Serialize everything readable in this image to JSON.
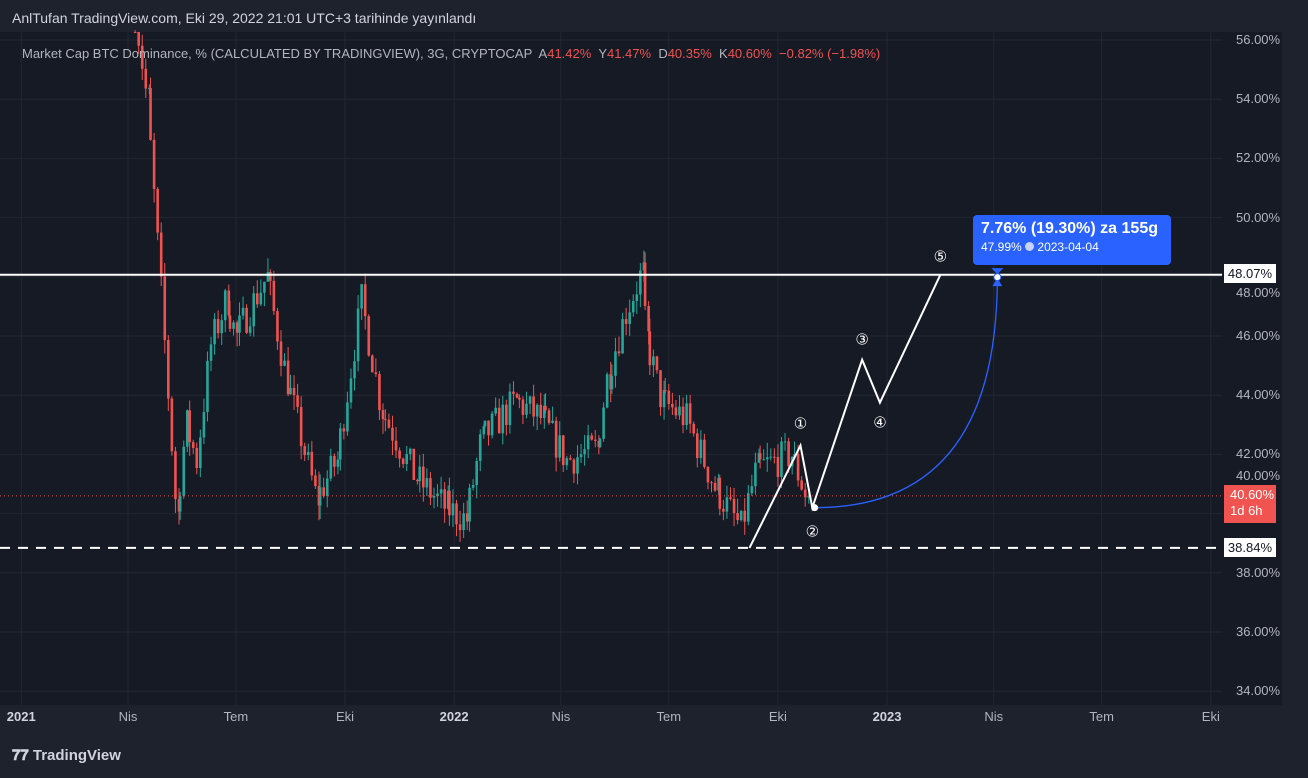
{
  "header": {
    "publish_line": "AnlTufan TradingView.com, Eki 29, 2022 21:01 UTC+3 tarihinde yayınlandı"
  },
  "legend": {
    "symbol": "Market Cap BTC Dominance, % (CALCULATED BY TRADINGVIEW), 3G, CRYPTOCAP",
    "o_label": "A",
    "o": "41.42%",
    "h_label": "Y",
    "h": "41.47%",
    "l_label": "D",
    "l": "40.35%",
    "c_label": "K",
    "c": "40.60%",
    "change": "−0.82% (−1.98%)"
  },
  "footer": {
    "logo": "TradingView"
  },
  "price_tags": {
    "resistance": "48.07%",
    "support": "38.84%",
    "current": "40.60%",
    "countdown": "1d 6h"
  },
  "projection": {
    "title": "7.76% (19.30%) za 155g",
    "price": "47.99%",
    "date": "2023-04-04",
    "icon": "clock-icon"
  },
  "colors": {
    "up": "#26a69a",
    "down": "#ef5350",
    "accent": "#2962ff",
    "bg": "#161a25"
  },
  "chart_data": {
    "type": "candlestick",
    "title": "Market Cap BTC Dominance, %",
    "ylim": [
      33.5,
      56.5
    ],
    "y_ticks": [
      "56.00%",
      "54.00%",
      "52.00%",
      "50.00%",
      "48.00%",
      "46.00%",
      "44.00%",
      "42.00%",
      "40.00%",
      "38.00%",
      "36.00%",
      "34.00%"
    ],
    "y_tick_values": [
      56,
      54,
      52,
      50,
      48,
      46,
      44,
      42,
      40,
      38,
      36,
      34
    ],
    "x_ticks": [
      {
        "label": "2021",
        "day": 0
      },
      {
        "label": "Nis",
        "day": 90
      },
      {
        "label": "Tem",
        "day": 181
      },
      {
        "label": "Eki",
        "day": 273
      },
      {
        "label": "2022",
        "day": 365
      },
      {
        "label": "Nis",
        "day": 455
      },
      {
        "label": "Tem",
        "day": 546
      },
      {
        "label": "Eki",
        "day": 638
      },
      {
        "label": "2023",
        "day": 730
      },
      {
        "label": "Nis",
        "day": 820
      },
      {
        "label": "Tem",
        "day": 911
      },
      {
        "label": "Eki",
        "day": 1003
      }
    ],
    "x_unit": "days since 2021-01-01",
    "close_waypoints": [
      [
        96,
        58
      ],
      [
        109,
        54
      ],
      [
        121,
        47.5
      ],
      [
        134,
        40
      ],
      [
        142,
        43
      ],
      [
        151,
        41.8
      ],
      [
        163,
        45.7
      ],
      [
        176,
        47.2
      ],
      [
        184,
        46
      ],
      [
        210,
        48
      ],
      [
        227,
        44.5
      ],
      [
        252,
        40.5
      ],
      [
        269,
        41.8
      ],
      [
        290,
        47.2
      ],
      [
        307,
        43.5
      ],
      [
        336,
        41.2
      ],
      [
        361,
        40.2
      ],
      [
        378,
        39.8
      ],
      [
        391,
        42.5
      ],
      [
        420,
        43.8
      ],
      [
        442,
        43.2
      ],
      [
        463,
        41.8
      ],
      [
        488,
        42.2
      ],
      [
        498,
        44.8
      ],
      [
        513,
        46.8
      ],
      [
        526,
        48.1
      ],
      [
        530,
        45.9
      ],
      [
        543,
        43.8
      ],
      [
        564,
        43.2
      ],
      [
        589,
        40.8
      ],
      [
        610,
        39.5
      ],
      [
        623,
        41.5
      ],
      [
        652,
        42
      ],
      [
        665,
        40.6
      ]
    ],
    "levels": [
      {
        "value": 48.07,
        "style": "solid"
      },
      {
        "value": 38.84,
        "style": "dashed"
      },
      {
        "value": 40.6,
        "style": "dotted"
      }
    ],
    "wave": {
      "points": [
        [
          614,
          38.84
        ],
        [
          657,
          42.3
        ],
        [
          667,
          40.2
        ],
        [
          709,
          45.2
        ],
        [
          724,
          43.75
        ],
        [
          775,
          48.07
        ]
      ],
      "labels": [
        "①",
        "②",
        "③",
        "④",
        "⑤"
      ]
    },
    "arc": {
      "from": [
        669,
        40.2
      ],
      "to": [
        823,
        47.99
      ]
    }
  }
}
